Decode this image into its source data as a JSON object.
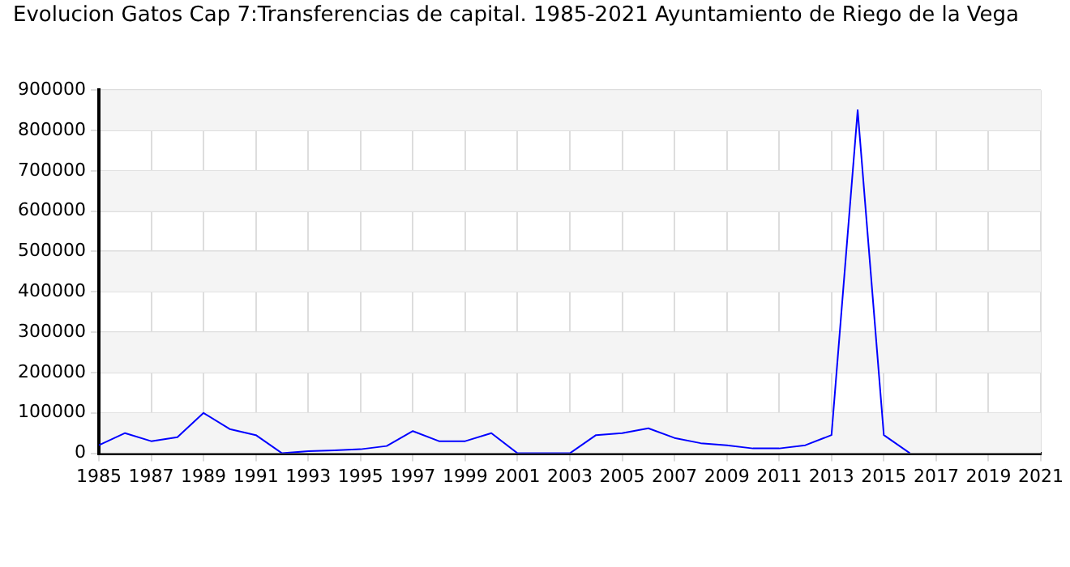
{
  "chart_data": {
    "type": "line",
    "title": "Evolucion Gatos Cap 7:Transferencias de capital. 1985-2021 Ayuntamiento de Riego de la Vega",
    "x": [
      1985,
      1986,
      1987,
      1988,
      1989,
      1990,
      1991,
      1992,
      1993,
      1994,
      1995,
      1996,
      1997,
      1998,
      1999,
      2000,
      2001,
      2002,
      2003,
      2004,
      2005,
      2006,
      2007,
      2008,
      2009,
      2010,
      2011,
      2012,
      2013,
      2014,
      2015,
      2016
    ],
    "series": [
      {
        "color": "#0000ff",
        "values": [
          20000,
          50000,
          30000,
          40000,
          100000,
          60000,
          45000,
          0,
          5000,
          7000,
          10000,
          18000,
          55000,
          30000,
          30000,
          50000,
          0,
          0,
          0,
          45000,
          50000,
          62000,
          38000,
          25000,
          20000,
          12000,
          12000,
          20000,
          45000,
          850000,
          45000,
          0
        ]
      }
    ],
    "xlim": [
      1985,
      2021
    ],
    "xticks": [
      1985,
      1987,
      1989,
      1991,
      1993,
      1995,
      1997,
      1999,
      2001,
      2003,
      2005,
      2007,
      2009,
      2011,
      2013,
      2015,
      2017,
      2019,
      2021
    ],
    "ylim": [
      0,
      900000
    ],
    "yticks": [
      0,
      100000,
      200000,
      300000,
      400000,
      500000,
      600000,
      700000,
      800000,
      900000
    ],
    "grid": true,
    "legend": false,
    "marker": "none",
    "line_style": "solid"
  }
}
